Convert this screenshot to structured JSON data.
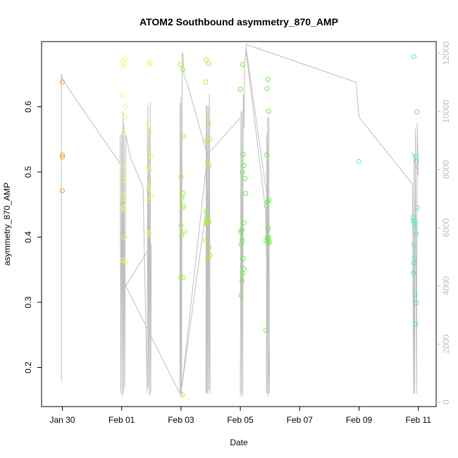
{
  "chart_data": {
    "type": "scatter",
    "title": "ATOM2 Southbound asymmetry_870_AMP",
    "xlabel": "Date",
    "ylabel": "asymmetry_870_AMP",
    "x_axis": {
      "unit": "date",
      "range_days": [
        -2.7,
        10.6
      ],
      "ticks": [
        {
          "day": -2,
          "label": "Jan 30"
        },
        {
          "day": 0,
          "label": "Feb 01"
        },
        {
          "day": 2,
          "label": "Feb 03"
        },
        {
          "day": 4,
          "label": "Feb 05"
        },
        {
          "day": 6,
          "label": "Feb 07"
        },
        {
          "day": 8,
          "label": "Feb 09"
        },
        {
          "day": 10,
          "label": "Feb 11"
        }
      ]
    },
    "y_axis": {
      "range": [
        0.14,
        0.7
      ],
      "ticks": [
        {
          "value": 0.2,
          "label": "0.2"
        },
        {
          "value": 0.3,
          "label": "0.3"
        },
        {
          "value": 0.4,
          "label": "0.4"
        },
        {
          "value": 0.5,
          "label": "0.5"
        },
        {
          "value": 0.6,
          "label": "0.6"
        }
      ]
    },
    "y2_axis": {
      "range": [
        -150,
        12400
      ],
      "color": "#bebebe",
      "ticks": [
        {
          "value": 0,
          "label": "0"
        },
        {
          "value": 2000,
          "label": "2000"
        },
        {
          "value": 4000,
          "label": "4000"
        },
        {
          "value": 6000,
          "label": "6000"
        },
        {
          "value": 8000,
          "label": "8000"
        },
        {
          "value": 10000,
          "label": "10000"
        },
        {
          "value": 12000,
          "label": "12000"
        }
      ]
    },
    "line_color": "#bebebe",
    "point_groups": [
      {
        "color": "#ff9a1a",
        "points": [
          [
            -2.0,
            0.638
          ],
          [
            -2.0,
            0.526
          ],
          [
            -2.0,
            0.523
          ],
          [
            -2.0,
            0.471
          ]
        ]
      },
      {
        "color": "#f2f55a",
        "points": [
          [
            0.02,
            0.67
          ],
          [
            0.06,
            0.662
          ],
          [
            0.13,
            0.672
          ],
          [
            0.04,
            0.618
          ],
          [
            0.12,
            0.6
          ],
          [
            0.1,
            0.584
          ],
          [
            0.07,
            0.56
          ],
          [
            0.06,
            0.51
          ],
          [
            0.08,
            0.494
          ],
          [
            0.05,
            0.482
          ],
          [
            0.03,
            0.466
          ],
          [
            0.1,
            0.458
          ],
          [
            0.04,
            0.444
          ],
          [
            0.07,
            0.446
          ],
          [
            0.09,
            0.4
          ],
          [
            0.03,
            0.365
          ],
          [
            0.12,
            0.362
          ],
          [
            0.93,
            0.665
          ],
          [
            0.96,
            0.668
          ],
          [
            0.9,
            0.573
          ],
          [
            0.95,
            0.56
          ],
          [
            0.92,
            0.533
          ],
          [
            0.98,
            0.523
          ],
          [
            0.88,
            0.507
          ],
          [
            0.94,
            0.503
          ],
          [
            0.97,
            0.482
          ],
          [
            0.9,
            0.473
          ],
          [
            0.99,
            0.463
          ],
          [
            0.93,
            0.456
          ],
          [
            0.89,
            0.406
          ],
          [
            0.94,
            0.405
          ]
        ]
      },
      {
        "color": "#a2f22c",
        "points": [
          [
            1.98,
            0.665
          ],
          [
            2.06,
            0.657
          ],
          [
            2.0,
            0.493
          ],
          [
            2.08,
            0.467
          ],
          [
            2.1,
            0.555
          ],
          [
            2.03,
            0.461
          ],
          [
            2.09,
            0.448
          ],
          [
            2.05,
            0.445
          ],
          [
            2.0,
            0.418
          ],
          [
            2.12,
            0.408
          ],
          [
            2.02,
            0.403
          ],
          [
            1.99,
            0.338
          ],
          [
            2.08,
            0.338
          ],
          [
            2.04,
            0.158
          ],
          [
            2.85,
            0.672
          ],
          [
            2.93,
            0.666
          ],
          [
            2.83,
            0.638
          ],
          [
            2.92,
            0.575
          ],
          [
            2.98,
            0.551
          ],
          [
            2.86,
            0.548
          ],
          [
            2.9,
            0.516
          ],
          [
            2.96,
            0.51
          ],
          [
            2.84,
            0.44
          ],
          [
            2.88,
            0.428
          ],
          [
            2.86,
            0.422
          ],
          [
            2.9,
            0.426
          ],
          [
            2.94,
            0.424
          ],
          [
            2.87,
            0.42
          ],
          [
            2.82,
            0.395
          ],
          [
            2.95,
            0.384
          ],
          [
            2.98,
            0.372
          ],
          [
            2.91,
            0.367
          ]
        ]
      },
      {
        "color": "#62f03e",
        "points": [
          [
            4.08,
            0.665
          ],
          [
            4.0,
            0.627
          ],
          [
            4.1,
            0.527
          ],
          [
            4.12,
            0.51
          ],
          [
            4.07,
            0.499
          ],
          [
            4.16,
            0.49
          ],
          [
            4.18,
            0.467
          ],
          [
            4.12,
            0.422
          ],
          [
            4.05,
            0.411
          ],
          [
            4.01,
            0.408
          ],
          [
            4.06,
            0.395
          ],
          [
            4.03,
            0.389
          ],
          [
            4.1,
            0.367
          ],
          [
            4.12,
            0.351
          ],
          [
            4.08,
            0.344
          ],
          [
            4.06,
            0.333
          ],
          [
            4.02,
            0.311
          ],
          [
            4.93,
            0.642
          ],
          [
            4.9,
            0.628
          ],
          [
            4.95,
            0.593
          ],
          [
            4.88,
            0.526
          ],
          [
            4.92,
            0.454
          ],
          [
            4.97,
            0.457
          ],
          [
            4.89,
            0.448
          ],
          [
            4.94,
            0.413
          ],
          [
            4.96,
            0.399
          ],
          [
            4.91,
            0.399
          ],
          [
            4.93,
            0.393
          ],
          [
            4.98,
            0.392
          ],
          [
            4.87,
            0.394
          ],
          [
            4.86,
            0.257
          ]
        ]
      },
      {
        "color": "#4fe8b5",
        "points": [
          [
            8.0,
            0.516
          ],
          [
            9.85,
            0.677
          ],
          [
            9.95,
            0.592
          ],
          [
            9.92,
            0.524
          ],
          [
            9.94,
            0.516
          ],
          [
            9.82,
            0.43
          ],
          [
            9.84,
            0.425
          ],
          [
            9.9,
            0.423
          ],
          [
            9.96,
            0.445
          ],
          [
            9.88,
            0.416
          ],
          [
            9.93,
            0.405
          ],
          [
            9.86,
            0.388
          ],
          [
            9.87,
            0.368
          ],
          [
            9.85,
            0.36
          ],
          [
            9.83,
            0.345
          ],
          [
            9.89,
            0.311
          ],
          [
            9.94,
            0.299
          ],
          [
            9.91,
            0.267
          ]
        ]
      }
    ],
    "overlay_line_y2": [
      [
        -2.03,
        725
      ],
      [
        -2.03,
        11300
      ],
      [
        -2.0,
        11100
      ],
      [
        -0.05,
        8200
      ],
      [
        -0.05,
        9200
      ],
      [
        -0.03,
        300
      ],
      [
        0.0,
        9200
      ],
      [
        0.02,
        200
      ],
      [
        0.04,
        10000
      ],
      [
        0.06,
        300
      ],
      [
        0.08,
        9600
      ],
      [
        0.1,
        500
      ],
      [
        0.12,
        4000
      ],
      [
        0.14,
        9200
      ],
      [
        0.3,
        8400
      ],
      [
        0.72,
        7400
      ],
      [
        0.86,
        300
      ],
      [
        0.88,
        10200
      ],
      [
        0.9,
        500
      ],
      [
        0.92,
        9400
      ],
      [
        0.94,
        200
      ],
      [
        0.96,
        10300
      ],
      [
        0.98,
        300
      ],
      [
        1.0,
        5400
      ],
      [
        0.14,
        4000
      ],
      [
        1.96,
        300
      ],
      [
        1.97,
        10300
      ],
      [
        1.99,
        300
      ],
      [
        2.0,
        10500
      ],
      [
        2.02,
        200
      ],
      [
        2.04,
        12000
      ],
      [
        2.06,
        12000
      ],
      [
        2.08,
        11800
      ],
      [
        2.1,
        11200
      ],
      [
        2.2,
        11000
      ],
      [
        2.86,
        8600
      ],
      [
        2.84,
        300
      ],
      [
        2.85,
        10200
      ],
      [
        2.87,
        300
      ],
      [
        2.88,
        10200
      ],
      [
        2.9,
        300
      ],
      [
        2.92,
        10200
      ],
      [
        2.94,
        400
      ],
      [
        2.96,
        10600
      ],
      [
        2.98,
        300
      ],
      [
        2.92,
        7200
      ],
      [
        2.0,
        300
      ],
      [
        2.0,
        300
      ],
      [
        2.06,
        800
      ],
      [
        2.9,
        8600
      ],
      [
        2.96,
        8600
      ],
      [
        4.02,
        9800
      ],
      [
        4.0,
        200
      ],
      [
        4.02,
        10000
      ],
      [
        4.04,
        300
      ],
      [
        4.06,
        10000
      ],
      [
        4.08,
        200
      ],
      [
        4.1,
        10600
      ],
      [
        4.12,
        9400
      ],
      [
        4.14,
        11600
      ],
      [
        4.16,
        11800
      ],
      [
        4.18,
        12000
      ],
      [
        4.19,
        12200
      ],
      [
        4.88,
        7200
      ],
      [
        4.88,
        300
      ],
      [
        4.89,
        9200
      ],
      [
        4.9,
        300
      ],
      [
        4.92,
        9800
      ],
      [
        4.94,
        200
      ],
      [
        4.96,
        9800
      ],
      [
        4.98,
        300
      ],
      [
        4.85,
        6600
      ],
      [
        4.19,
        12100
      ],
      [
        4.2,
        12300
      ],
      [
        7.9,
        11000
      ],
      [
        8.0,
        9800
      ],
      [
        9.8,
        7500
      ],
      [
        9.84,
        300
      ],
      [
        9.85,
        8400
      ],
      [
        9.87,
        300
      ],
      [
        9.9,
        9400
      ],
      [
        9.94,
        300
      ],
      [
        9.96,
        9600
      ],
      [
        10.0,
        7800
      ],
      [
        9.8,
        8600
      ]
    ]
  }
}
